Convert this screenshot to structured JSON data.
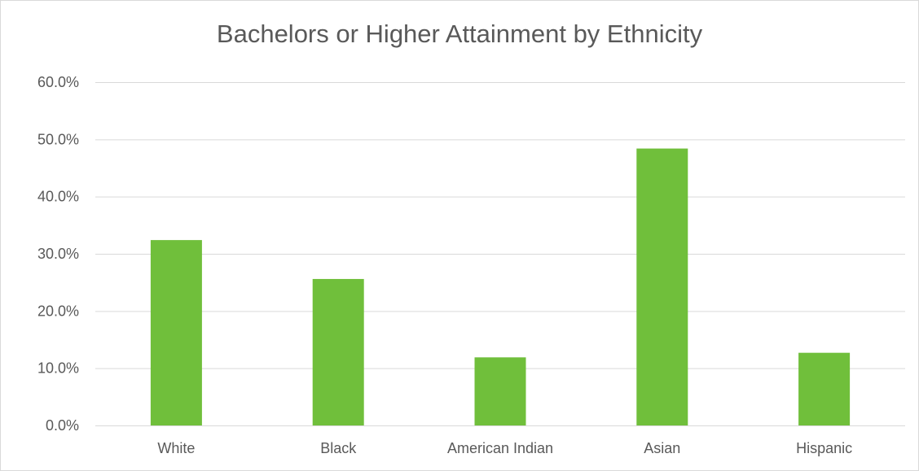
{
  "chart_data": {
    "type": "bar",
    "title": "Bachelors or Higher Attainment by Ethnicity",
    "xlabel": "",
    "ylabel": "",
    "categories": [
      "White",
      "Black",
      "American Indian",
      "Asian",
      "Hispanic"
    ],
    "values": [
      0.324,
      0.256,
      0.119,
      0.484,
      0.127
    ],
    "ylim": [
      0,
      0.6
    ],
    "yticks": [
      0,
      0.1,
      0.2,
      0.3,
      0.4,
      0.5,
      0.6
    ],
    "ytick_labels": [
      "0.0%",
      "10.0%",
      "20.0%",
      "30.0%",
      "40.0%",
      "50.0%",
      "60.0%"
    ],
    "grid": true,
    "legend": "none",
    "bar_color": "#70bf3b",
    "grid_color": "#d9d9d9",
    "text_color": "#595959"
  }
}
